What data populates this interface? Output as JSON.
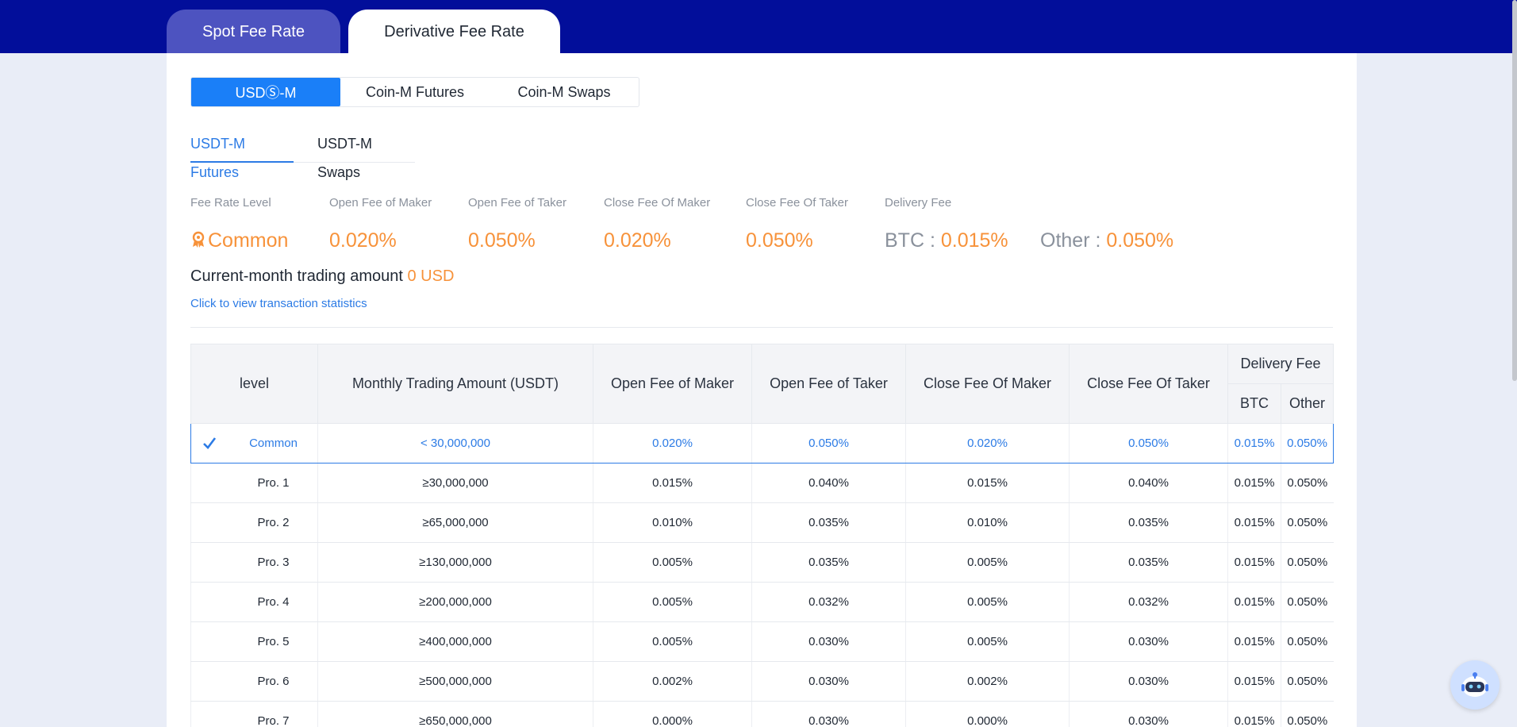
{
  "top_tabs": [
    {
      "label": "Spot Fee Rate",
      "active": false
    },
    {
      "label": "Derivative Fee Rate",
      "active": true
    }
  ],
  "segments": [
    {
      "label": "USDⓈ-M",
      "active": true
    },
    {
      "label": "Coin-M Futures",
      "active": false
    },
    {
      "label": "Coin-M Swaps",
      "active": false
    }
  ],
  "subtabs": [
    {
      "label": "USDT-M Futures",
      "active": true
    },
    {
      "label": "USDT-M Swaps",
      "active": false
    }
  ],
  "summary": {
    "labels": {
      "level": "Fee Rate Level",
      "open_maker": "Open Fee of Maker",
      "open_taker": "Open Fee of Taker",
      "close_maker": "Close Fee Of Maker",
      "close_taker": "Close Fee Of Taker",
      "delivery": "Delivery Fee"
    },
    "level": "Common",
    "open_maker": "0.020%",
    "open_taker": "0.050%",
    "close_maker": "0.020%",
    "close_taker": "0.050%",
    "delivery_btc_label": "BTC : ",
    "delivery_btc": "0.015%",
    "delivery_other_label": "Other : ",
    "delivery_other": "0.050%",
    "trading_label": "Current-month trading amount",
    "trading_amount": "0 USD",
    "stats_link": "Click to view transaction statistics"
  },
  "table": {
    "headers": {
      "level": "level",
      "amount": "Monthly Trading Amount (USDT)",
      "open_maker": "Open Fee of Maker",
      "open_taker": "Open Fee of Taker",
      "close_maker": "Close Fee Of Maker",
      "close_taker": "Close Fee Of Taker",
      "delivery": "Delivery Fee",
      "btc": "BTC",
      "other": "Other"
    },
    "rows": [
      {
        "level": "Common",
        "amount": "< 30,000,000",
        "open_maker": "0.020%",
        "open_taker": "0.050%",
        "close_maker": "0.020%",
        "close_taker": "0.050%",
        "btc": "0.015%",
        "other": "0.050%",
        "current": true
      },
      {
        "level": "Pro. 1",
        "amount": "≥30,000,000",
        "open_maker": "0.015%",
        "open_taker": "0.040%",
        "close_maker": "0.015%",
        "close_taker": "0.040%",
        "btc": "0.015%",
        "other": "0.050%",
        "current": false
      },
      {
        "level": "Pro. 2",
        "amount": "≥65,000,000",
        "open_maker": "0.010%",
        "open_taker": "0.035%",
        "close_maker": "0.010%",
        "close_taker": "0.035%",
        "btc": "0.015%",
        "other": "0.050%",
        "current": false
      },
      {
        "level": "Pro. 3",
        "amount": "≥130,000,000",
        "open_maker": "0.005%",
        "open_taker": "0.035%",
        "close_maker": "0.005%",
        "close_taker": "0.035%",
        "btc": "0.015%",
        "other": "0.050%",
        "current": false
      },
      {
        "level": "Pro. 4",
        "amount": "≥200,000,000",
        "open_maker": "0.005%",
        "open_taker": "0.032%",
        "close_maker": "0.005%",
        "close_taker": "0.032%",
        "btc": "0.015%",
        "other": "0.050%",
        "current": false
      },
      {
        "level": "Pro. 5",
        "amount": "≥400,000,000",
        "open_maker": "0.005%",
        "open_taker": "0.030%",
        "close_maker": "0.005%",
        "close_taker": "0.030%",
        "btc": "0.015%",
        "other": "0.050%",
        "current": false
      },
      {
        "level": "Pro. 6",
        "amount": "≥500,000,000",
        "open_maker": "0.002%",
        "open_taker": "0.030%",
        "close_maker": "0.002%",
        "close_taker": "0.030%",
        "btc": "0.015%",
        "other": "0.050%",
        "current": false
      },
      {
        "level": "Pro. 7",
        "amount": "≥650,000,000",
        "open_maker": "0.000%",
        "open_taker": "0.030%",
        "close_maker": "0.000%",
        "close_taker": "0.030%",
        "btc": "0.015%",
        "other": "0.050%",
        "current": false
      }
    ]
  },
  "colors": {
    "header_bg": "#020e9a",
    "accent_blue": "#2c7be5",
    "segment_active": "#1a7ff8",
    "highlight_orange": "#f7923a",
    "muted_grey": "#8a919c"
  },
  "icons": {
    "level_badge": "award-icon",
    "current_row": "check-icon",
    "assistant": "support-bot-icon"
  }
}
